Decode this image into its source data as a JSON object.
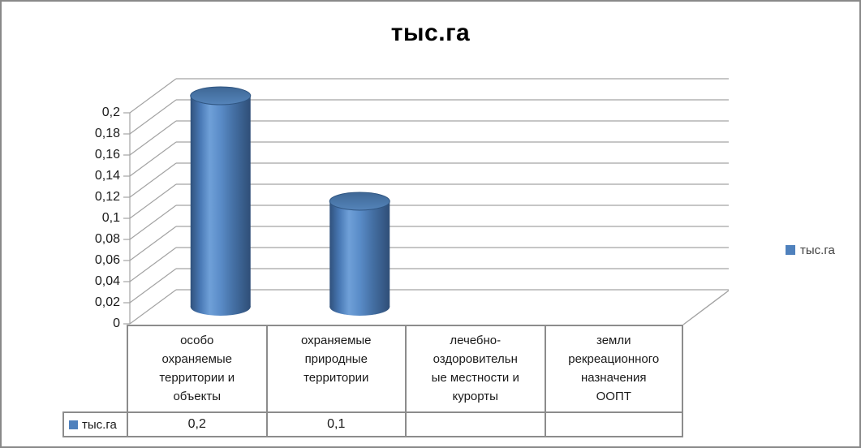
{
  "chart_data": {
    "type": "bar",
    "style": "3d-cylinder",
    "title": "тыс.га",
    "categories": [
      "особо охраняемые территории и объекты",
      "охраняемые природные территории",
      "лечебно-оздоровительные местности и курорты",
      "земли рекреационного назначения ООПТ"
    ],
    "category_lines": [
      [
        "особо",
        "охраняемые",
        "территории и",
        "объекты"
      ],
      [
        "охраняемые",
        "природные",
        "территории"
      ],
      [
        "лечебно-",
        "оздоровительн",
        "ые местности и",
        "курорты"
      ],
      [
        "земли",
        "рекреационного",
        "назначения",
        "ООПТ"
      ]
    ],
    "series": [
      {
        "name": "тыс.га",
        "values": [
          0.2,
          0.1,
          null,
          null
        ],
        "display_values": [
          "0,2",
          "0,1",
          "",
          ""
        ],
        "color": "#4F81BD"
      }
    ],
    "ylim": [
      0,
      0.2
    ],
    "y_tick_step": 0.02,
    "y_tick_labels_top_to_bottom": [
      "0,2",
      "0,18",
      "0,16",
      "0,14",
      "0,12",
      "0,1",
      "0,08",
      "0,06",
      "0,04",
      "0,02",
      "0"
    ],
    "grid": true,
    "legend_position": "right",
    "data_table_shown": true
  },
  "colors": {
    "background": "#FFFFFF",
    "canvas_border": "#898989",
    "gridline": "#A3A3A3",
    "axis_line": "#A3A3A3",
    "table_border": "#8C8C8C",
    "text": "#1A1A1A",
    "legend_text": "#3F3F3F",
    "series_blue": "#4F81BD",
    "cylinder_body_stops": [
      [
        "0",
        "#30517C"
      ],
      [
        "0.16",
        "#4878B4"
      ],
      [
        "0.32",
        "#6FA0D8"
      ],
      [
        "0.5",
        "#5A8CC8"
      ],
      [
        "0.72",
        "#446FA3"
      ],
      [
        "1",
        "#2F4E77"
      ]
    ],
    "cylinder_top_stops": [
      [
        "0",
        "#3E6795"
      ],
      [
        "1",
        "#5584BA"
      ]
    ],
    "cylinder_top_stroke": "#305682"
  }
}
